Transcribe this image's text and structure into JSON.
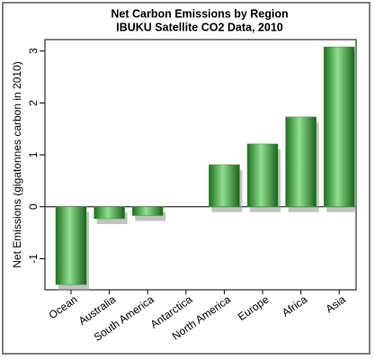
{
  "chart_data": {
    "type": "bar",
    "title": "Net Carbon Emissions by Region",
    "subtitle": "IBUKU Satellite CO2 Data, 2010",
    "y_label": "Net Emissions (gigatonnes carbon in 2010)",
    "categories": [
      "Ocean",
      "Australia",
      "South America",
      "Antarctica",
      "North America",
      "Europe",
      "Africa",
      "Asia"
    ],
    "values": [
      -1.5,
      -0.23,
      -0.17,
      0,
      0.81,
      1.21,
      1.73,
      3.08
    ],
    "color": "#2e9a2e",
    "ylim": [
      -1.6,
      3.22
    ],
    "yticks": [
      -1,
      0,
      1,
      2,
      3
    ],
    "grid": false
  }
}
